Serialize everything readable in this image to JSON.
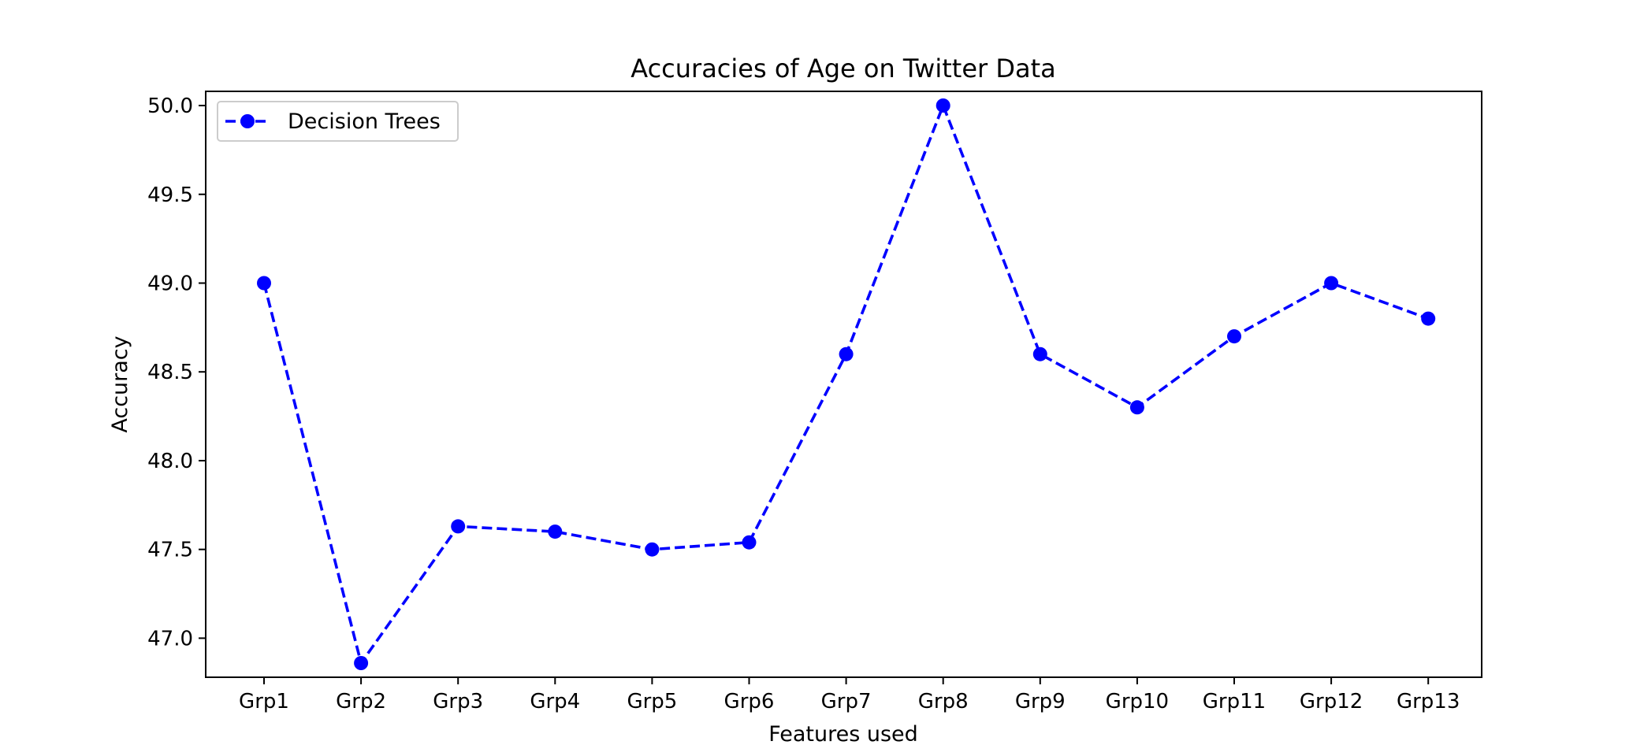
{
  "chart_data": {
    "type": "line",
    "title": "Accuracies of Age on Twitter Data",
    "xlabel": "Features used",
    "ylabel": "Accuracy",
    "categories": [
      "Grp1",
      "Grp2",
      "Grp3",
      "Grp4",
      "Grp5",
      "Grp6",
      "Grp7",
      "Grp8",
      "Grp9",
      "Grp10",
      "Grp11",
      "Grp12",
      "Grp13"
    ],
    "series": [
      {
        "name": "Decision Trees",
        "values": [
          49.0,
          46.86,
          47.63,
          47.6,
          47.5,
          47.54,
          48.6,
          50.0,
          48.6,
          48.3,
          48.7,
          49.0,
          48.8
        ],
        "color": "#0000ff",
        "line_style": "dashed",
        "marker": "circle"
      }
    ],
    "ylim": [
      46.78,
      50.08
    ],
    "yticks": [
      "47.0",
      "47.5",
      "48.0",
      "48.5",
      "49.0",
      "49.5",
      "50.0"
    ],
    "legend": "upper-left",
    "grid": false
  }
}
